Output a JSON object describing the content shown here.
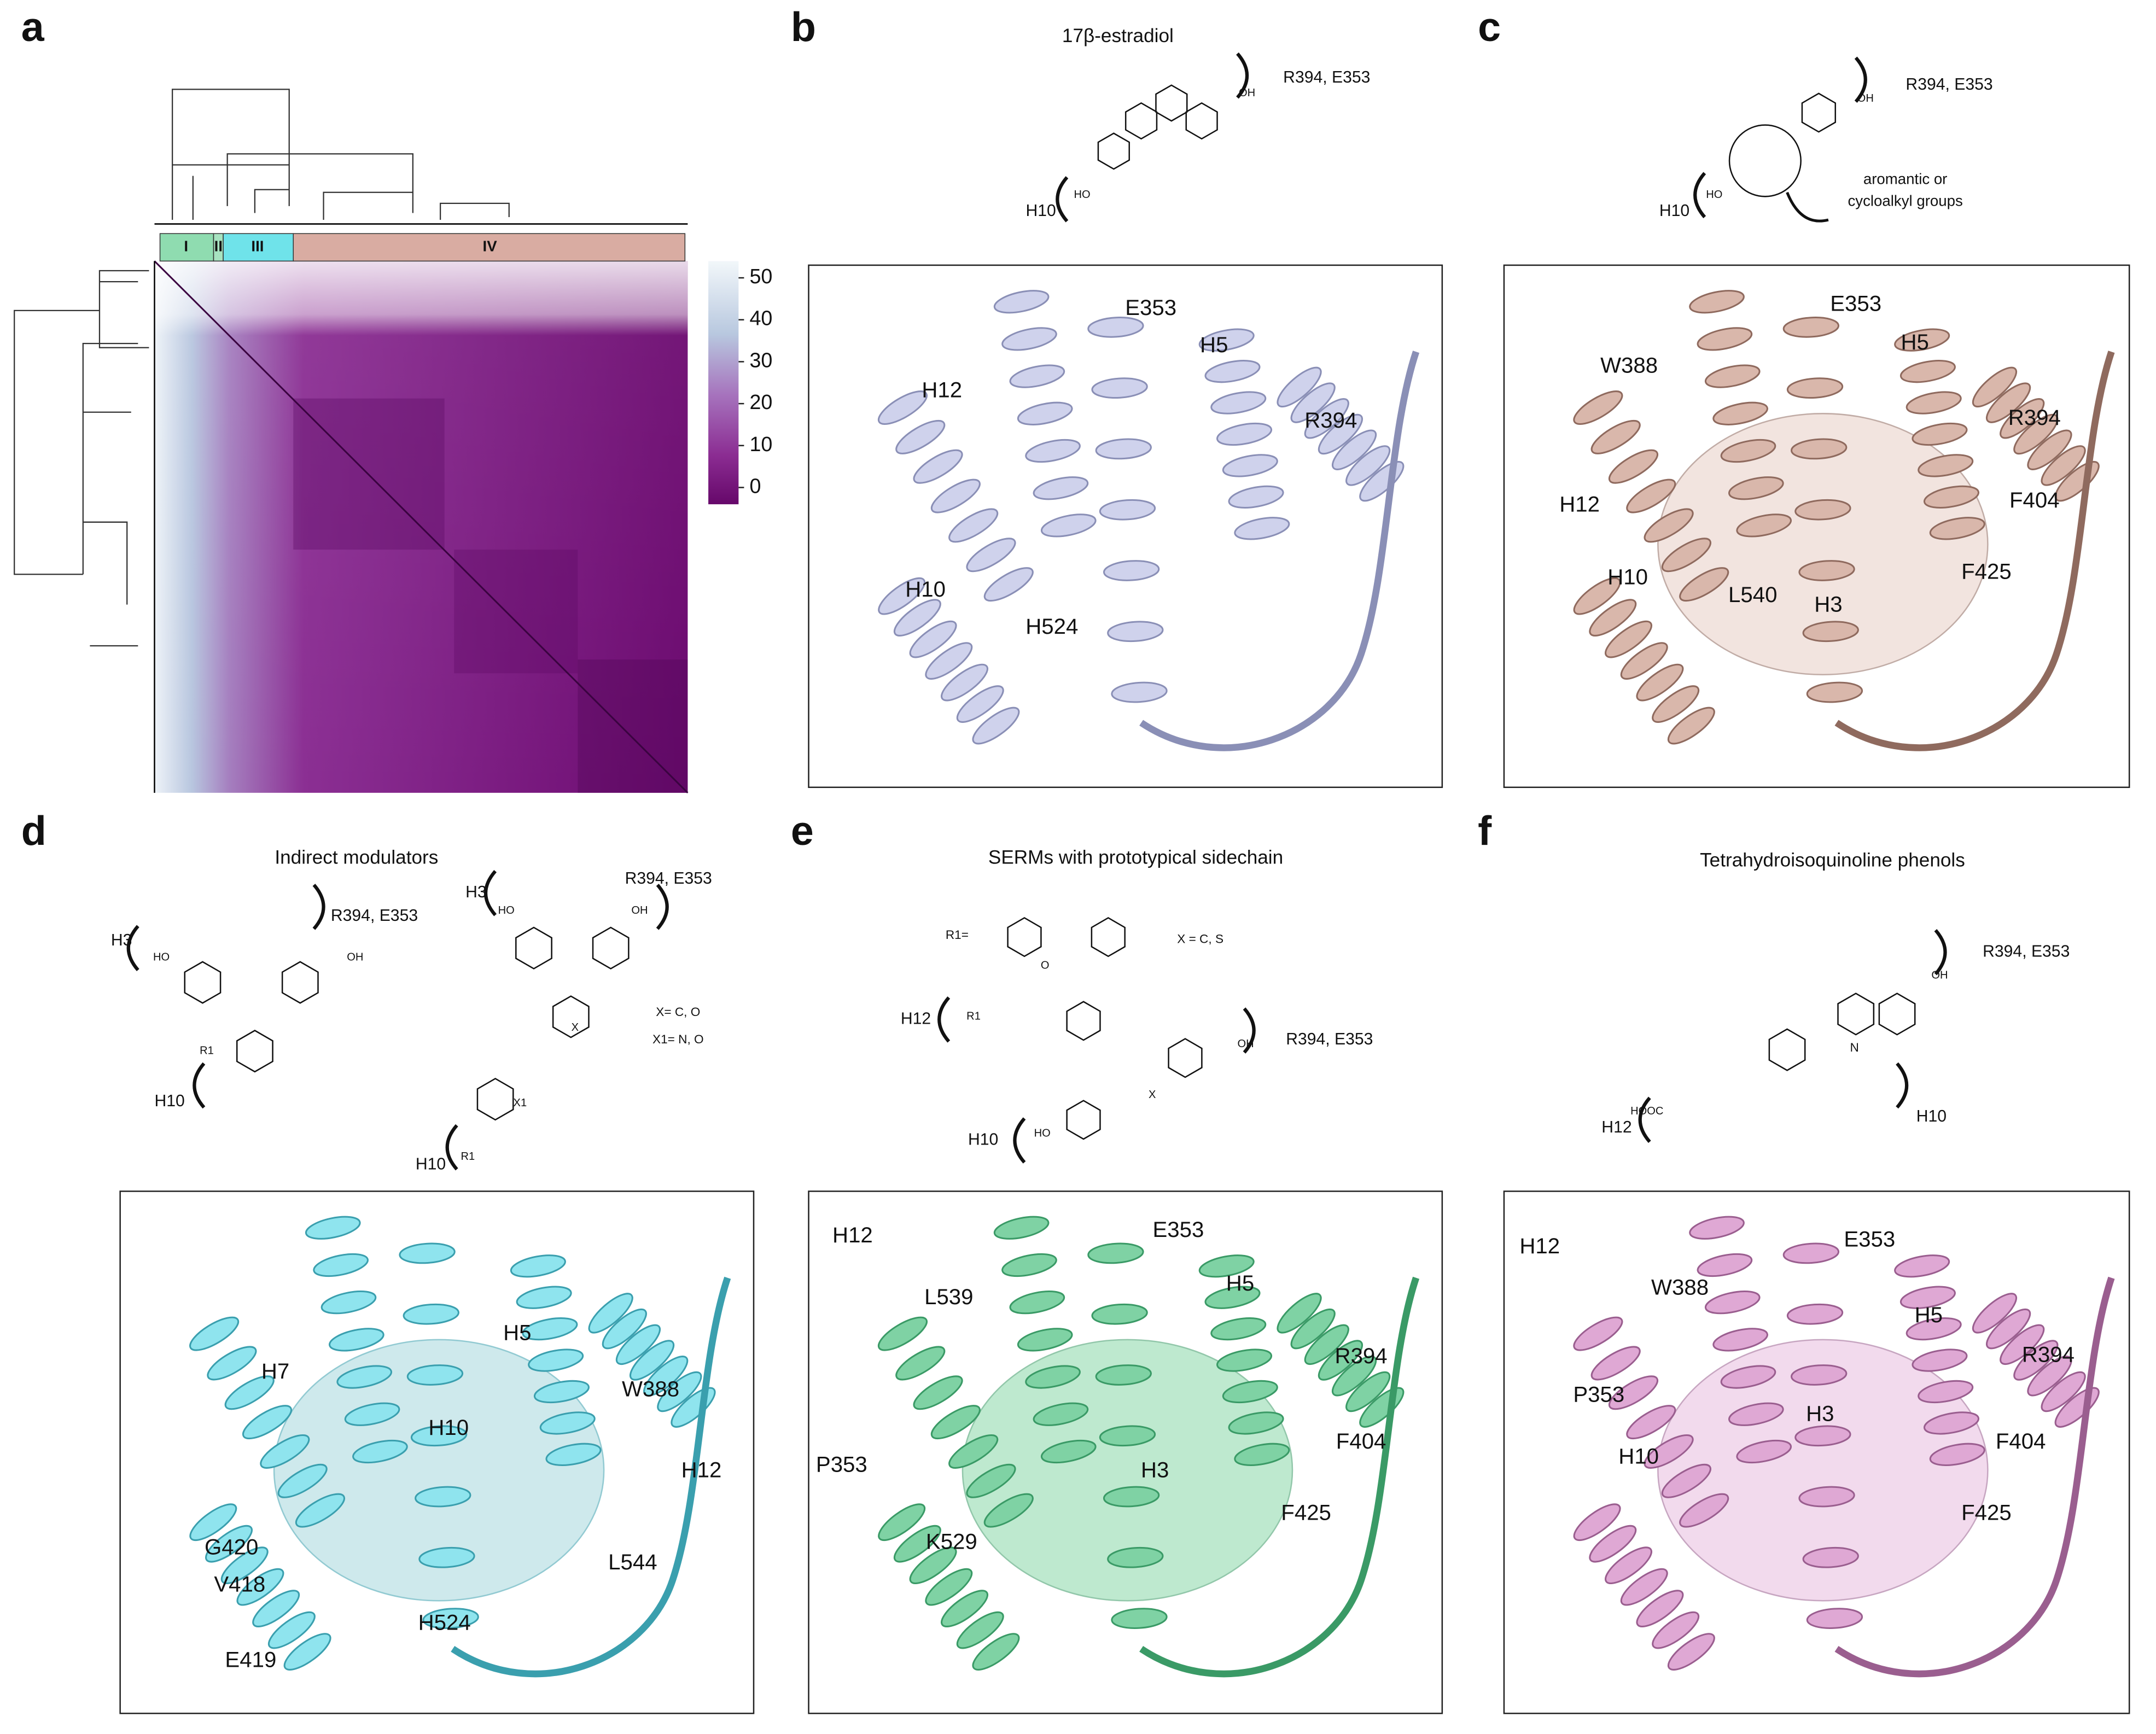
{
  "panels": {
    "a": {
      "letter": "a",
      "clusters": [
        "I",
        "II",
        "III",
        "IV"
      ],
      "colorbar_lim": [
        -4,
        54
      ],
      "colorbar_ticks": [
        0,
        10,
        20,
        30,
        40,
        50
      ]
    },
    "b": {
      "letter": "b",
      "title": "17β-estradiol",
      "scheme": [
        "R394, E353",
        "H10",
        "OH",
        "HO"
      ],
      "labels": [
        "E353",
        "H5",
        "H12",
        "R394",
        "H10",
        "H524"
      ]
    },
    "c": {
      "letter": "c",
      "scheme": [
        "R394, E353",
        "H10",
        "aromantic or",
        "cycloalkyl groups",
        "OH",
        "HO"
      ],
      "labels": [
        "E353",
        "W388",
        "H5",
        "R394",
        "H12",
        "F404",
        "F425",
        "H10",
        "L540",
        "H3"
      ]
    },
    "d": {
      "letter": "d",
      "title": "Indirect modulators",
      "scheme": [
        "R394, E353",
        "H3",
        "HO",
        "OH",
        "H10",
        "R1",
        "H3",
        "HO",
        "OH",
        "R394, E353",
        "X= C, O",
        "X1= N, O",
        "X",
        "X1",
        "H10",
        "R1"
      ],
      "labels": [
        "H5",
        "H7",
        "W388",
        "H10",
        "H12",
        "L544",
        "G420",
        "V418",
        "H524",
        "E419"
      ]
    },
    "e": {
      "letter": "e",
      "title": "SERMs with prototypical sidechain",
      "scheme": [
        "R1=",
        "X = C, S",
        "H12",
        "R1",
        "O",
        "OH",
        "R394, E353",
        "HO",
        "X",
        "H10"
      ],
      "labels": [
        "H12",
        "E353",
        "H5",
        "L539",
        "R394",
        "P353",
        "F404",
        "H3",
        "F425",
        "K529"
      ]
    },
    "f": {
      "letter": "f",
      "title": "Tetrahydroisoquinoline phenols",
      "scheme": [
        "R394, E353",
        "OH",
        "N",
        "HOOC",
        "H12",
        "H10"
      ],
      "labels": [
        "H12",
        "E353",
        "W388",
        "H5",
        "R394",
        "P353",
        "H3",
        "H10",
        "F404",
        "F425"
      ]
    }
  }
}
